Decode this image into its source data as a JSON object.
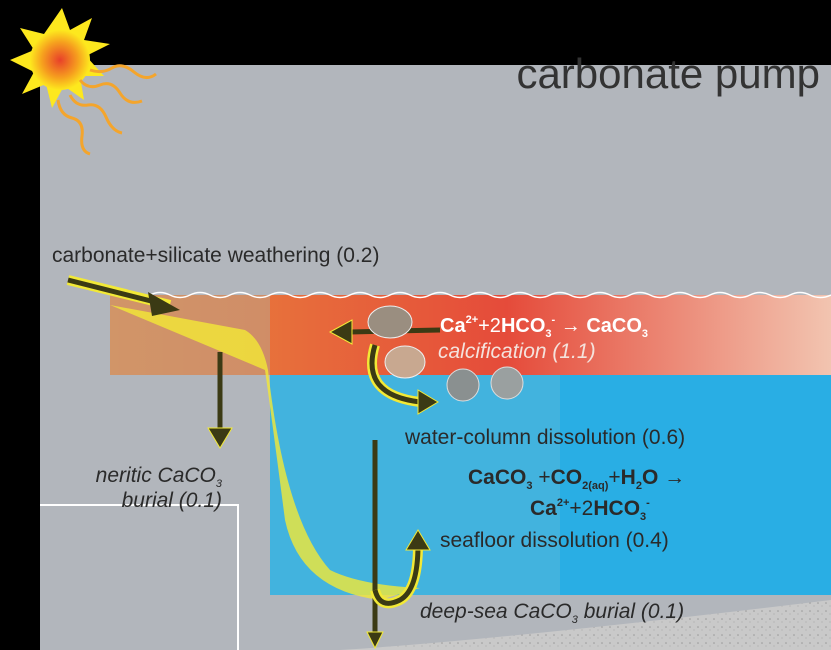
{
  "title": "carbonate pump",
  "weathering": "carbonate+silicate weathering (0.2)",
  "calcification_equation": [
    "Ca",
    "2+",
    "+2",
    "HCO",
    "3",
    "-",
    " → ",
    "CaCO",
    "3"
  ],
  "calcification": "calcification (1.1)",
  "water_column_dissolution": "water-column dissolution (0.6)",
  "dissolution_equation_line1": [
    "CaCO",
    "3",
    " +",
    "CO",
    "2(aq)",
    "+",
    "H",
    "2",
    "O",
    " →"
  ],
  "dissolution_equation_line2": [
    "Ca",
    "2+",
    "+2",
    "HCO",
    "3",
    "-"
  ],
  "seafloor_dissolution": "seafloor dissolution (0.4)",
  "neritic_burial": [
    "neritic CaCO",
    "3",
    "burial (0.1)"
  ],
  "deep_sea_burial": [
    "deep-sea CaCO",
    "3",
    " burial (0.1)"
  ]
}
